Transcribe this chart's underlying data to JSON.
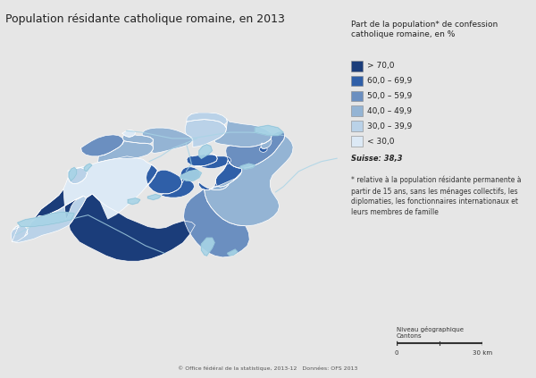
{
  "title": "Population résidante catholique romaine, en 2013",
  "legend_title": "Part de la population* de confession\ncatholique romaine, en %",
  "legend_entries": [
    {
      "label": "> 70,0",
      "color": "#1b3d7a"
    },
    {
      "label": "60,0 – 69,9",
      "color": "#2f5fa8"
    },
    {
      "label": "50,0 – 59,9",
      "color": "#6b8fc0"
    },
    {
      "label": "40,0 – 49,9",
      "color": "#94b4d4"
    },
    {
      "label": "30,0 – 39,9",
      "color": "#bad2e8"
    },
    {
      "label": "< 30,0",
      "color": "#dce9f5"
    }
  ],
  "footnote_label": "Suisse: 38,3",
  "footnote_text": "* relative à la population résidante permanente à\npartir de 15 ans, sans les ménages collectifs, les\ndiplomaties, les fonctionnaires internationaux et\nleurs membres de famille",
  "scale_label": "Niveau géographique\nCantons",
  "source_line": "© Office fédéral de la statistique, 2013-12   Données: OFS 2013",
  "background_color": "#e6e6e6",
  "water_color": "#a8d4e6",
  "border_color": "#ffffff",
  "canton_data": {
    "VS": {
      "color": "#1b3d7a",
      "pct": 75.0
    },
    "FR": {
      "color": "#1b3d7a",
      "pct": 72.0
    },
    "LU": {
      "color": "#2f5fa8",
      "pct": 65.0
    },
    "OW": {
      "color": "#2f5fa8",
      "pct": 68.0
    },
    "NW": {
      "color": "#2f5fa8",
      "pct": 66.0
    },
    "UR": {
      "color": "#2f5fa8",
      "pct": 62.0
    },
    "SZ": {
      "color": "#2f5fa8",
      "pct": 63.0
    },
    "ZG": {
      "color": "#2f5fa8",
      "pct": 64.0
    },
    "AI": {
      "color": "#2f5fa8",
      "pct": 61.0
    },
    "SG": {
      "color": "#6b8fc0",
      "pct": 55.0
    },
    "TI": {
      "color": "#6b8fc0",
      "pct": 57.0
    },
    "JU": {
      "color": "#6b8fc0",
      "pct": 58.0
    },
    "AG": {
      "color": "#94b4d4",
      "pct": 43.0
    },
    "SO": {
      "color": "#94b4d4",
      "pct": 44.0
    },
    "TG": {
      "color": "#94b4d4",
      "pct": 45.0
    },
    "GR": {
      "color": "#94b4d4",
      "pct": 46.0
    },
    "AR": {
      "color": "#94b4d4",
      "pct": 41.0
    },
    "BL": {
      "color": "#94b4d4",
      "pct": 40.0
    },
    "SH": {
      "color": "#bad2e8",
      "pct": 32.0
    },
    "ZH": {
      "color": "#bad2e8",
      "pct": 33.0
    },
    "GL": {
      "color": "#bad2e8",
      "pct": 35.0
    },
    "GE": {
      "color": "#bad2e8",
      "pct": 34.0
    },
    "VD": {
      "color": "#bad2e8",
      "pct": 36.0
    },
    "NE": {
      "color": "#bad2e8",
      "pct": 37.0
    },
    "BS": {
      "color": "#dce9f5",
      "pct": 25.0
    },
    "BE": {
      "color": "#dce9f5",
      "pct": 12.0
    }
  },
  "title_fontsize": 9,
  "legend_fontsize": 6.5,
  "footnote_fontsize": 5.5
}
